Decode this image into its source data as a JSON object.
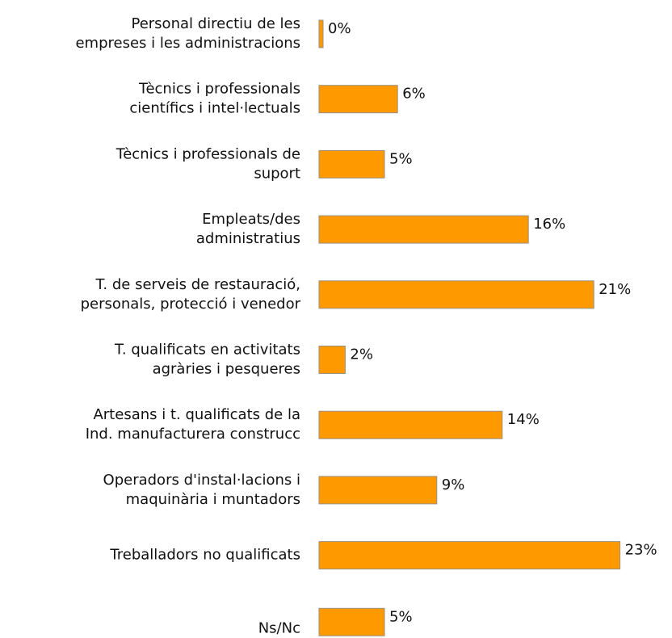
{
  "chart_data": {
    "type": "bar",
    "orientation": "horizontal",
    "categories": [
      [
        "Personal directiu de les",
        "empreses i les administracions"
      ],
      [
        "Tècnics i professionals",
        "científics i intel·lectuals"
      ],
      [
        "Tècnics i professionals de",
        "suport"
      ],
      [
        "Empleats/des",
        "administratius"
      ],
      [
        "T. de serveis de restauració,",
        "personals, protecció i venedor"
      ],
      [
        "T. qualificats en activitats",
        "agràries i pesqueres"
      ],
      [
        "Artesans i t. qualificats de la",
        "Ind. manufacturera construcc"
      ],
      [
        "Operadors d'instal·lacions i",
        "maquinària i muntadors"
      ],
      [
        "Treballadors no qualificats"
      ],
      [
        "Ns/Nc"
      ]
    ],
    "values": [
      0,
      6,
      5,
      16,
      21,
      2,
      14,
      9,
      23,
      5
    ],
    "value_labels": [
      "0%",
      "6%",
      "5%",
      "16%",
      "21%",
      "2%",
      "14%",
      "9%",
      "23%",
      "5%"
    ],
    "color": "#ff9900"
  }
}
